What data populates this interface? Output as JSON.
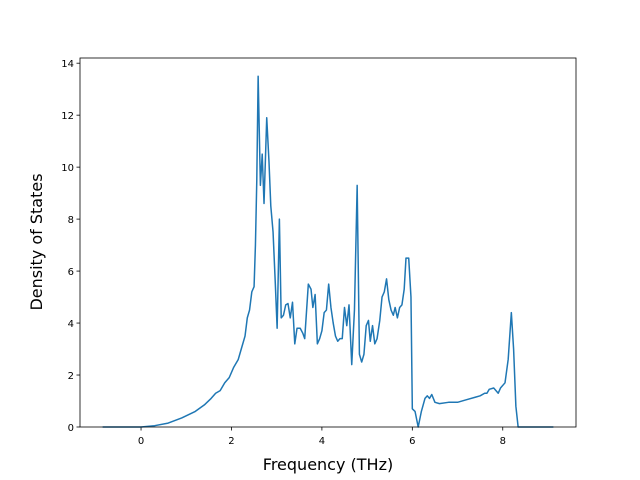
{
  "chart_data": {
    "type": "line",
    "xlabel": "Frequency (THz)",
    "ylabel": "Density of States",
    "color": "#1f77b4",
    "x": [
      -0.85,
      0,
      0.3,
      0.6,
      0.9,
      1.2,
      1.4,
      1.55,
      1.65,
      1.75,
      1.85,
      1.95,
      2.05,
      2.15,
      2.2,
      2.3,
      2.35,
      2.4,
      2.45,
      2.5,
      2.53,
      2.56,
      2.59,
      2.64,
      2.68,
      2.72,
      2.78,
      2.83,
      2.87,
      2.92,
      2.97,
      3.01,
      3.06,
      3.1,
      3.15,
      3.2,
      3.25,
      3.3,
      3.35,
      3.4,
      3.45,
      3.52,
      3.58,
      3.62,
      3.7,
      3.76,
      3.8,
      3.85,
      3.9,
      3.95,
      4.0,
      4.05,
      4.1,
      4.15,
      4.2,
      4.25,
      4.3,
      4.35,
      4.4,
      4.45,
      4.5,
      4.55,
      4.6,
      4.66,
      4.72,
      4.78,
      4.83,
      4.88,
      4.93,
      4.98,
      5.03,
      5.07,
      5.12,
      5.17,
      5.22,
      5.28,
      5.33,
      5.38,
      5.43,
      5.48,
      5.53,
      5.58,
      5.62,
      5.67,
      5.72,
      5.77,
      5.82,
      5.86,
      5.92,
      5.97,
      6.0,
      6.06,
      6.13,
      6.2,
      6.28,
      6.33,
      6.38,
      6.43,
      6.5,
      6.6,
      6.8,
      7.0,
      7.2,
      7.4,
      7.5,
      7.6,
      7.65,
      7.7,
      7.8,
      7.9,
      7.95,
      8.05,
      8.12,
      8.19,
      8.24,
      8.29,
      8.34,
      9.12
    ],
    "values": [
      0,
      0,
      0.05,
      0.15,
      0.35,
      0.6,
      0.85,
      1.1,
      1.3,
      1.4,
      1.7,
      1.9,
      2.3,
      2.6,
      2.9,
      3.5,
      4.2,
      4.5,
      5.2,
      5.4,
      7.0,
      9.5,
      13.5,
      9.3,
      10.5,
      8.6,
      11.9,
      10.2,
      8.5,
      7.5,
      5.5,
      3.8,
      8.0,
      4.2,
      4.3,
      4.7,
      4.75,
      4.2,
      4.8,
      3.2,
      3.8,
      3.8,
      3.6,
      3.4,
      5.5,
      5.3,
      4.6,
      5.1,
      3.2,
      3.4,
      3.7,
      4.4,
      4.5,
      5.5,
      4.6,
      4.0,
      3.5,
      3.3,
      3.4,
      3.4,
      4.6,
      3.9,
      4.7,
      2.4,
      4.5,
      9.3,
      2.8,
      2.5,
      2.8,
      3.9,
      4.1,
      3.3,
      3.9,
      3.2,
      3.4,
      4.1,
      5.0,
      5.2,
      5.7,
      4.9,
      4.5,
      4.3,
      4.6,
      4.2,
      4.6,
      4.7,
      5.3,
      6.5,
      6.5,
      5.0,
      0.7,
      0.6,
      0.0,
      0.6,
      1.1,
      1.2,
      1.1,
      1.25,
      0.95,
      0.9,
      0.95,
      0.95,
      1.05,
      1.15,
      1.2,
      1.3,
      1.3,
      1.45,
      1.5,
      1.3,
      1.5,
      1.7,
      2.6,
      4.4,
      3.0,
      0.8,
      0,
      0
    ],
    "xlim": [
      -1.35,
      9.62
    ],
    "ylim": [
      0,
      14.2
    ],
    "xticks": [
      0,
      2,
      4,
      6,
      8
    ],
    "yticks": [
      0,
      2,
      4,
      6,
      8,
      10,
      12,
      14
    ]
  }
}
